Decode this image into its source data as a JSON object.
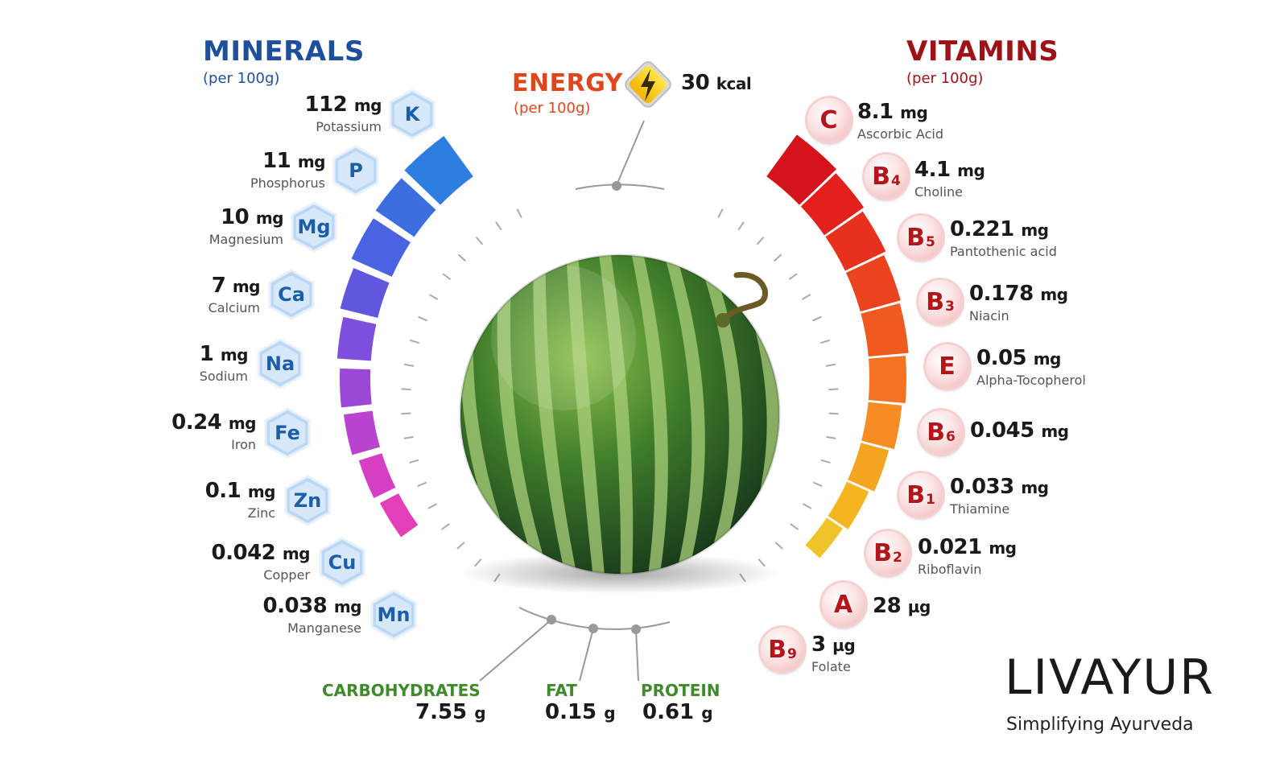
{
  "minerals": {
    "title": "MINERALS",
    "subtitle": "(per 100g)",
    "items": [
      {
        "value": "112",
        "unit": "mg",
        "name": "Potassium",
        "symbol": "K"
      },
      {
        "value": "11",
        "unit": "mg",
        "name": "Phosphorus",
        "symbol": "P"
      },
      {
        "value": "10",
        "unit": "mg",
        "name": "Magnesium",
        "symbol": "Mg"
      },
      {
        "value": "7",
        "unit": "mg",
        "name": "Calcium",
        "symbol": "Ca"
      },
      {
        "value": "1",
        "unit": "mg",
        "name": "Sodium",
        "symbol": "Na"
      },
      {
        "value": "0.24",
        "unit": "mg",
        "name": "Iron",
        "symbol": "Fe"
      },
      {
        "value": "0.1",
        "unit": "mg",
        "name": "Zinc",
        "symbol": "Zn"
      },
      {
        "value": "0.042",
        "unit": "mg",
        "name": "Copper",
        "symbol": "Cu"
      },
      {
        "value": "0.038",
        "unit": "mg",
        "name": "Manganese",
        "symbol": "Mn"
      }
    ]
  },
  "energy": {
    "title": "ENERGY",
    "subtitle": "(per 100g)",
    "value": "30",
    "unit": "kcal",
    "icon": "lightning-icon"
  },
  "vitamins": {
    "title": "VITAMINS",
    "subtitle": "(per 100g)",
    "items": [
      {
        "letter": "C",
        "sub": "",
        "value": "8.1",
        "unit": "mg",
        "name": "Ascorbic Acid"
      },
      {
        "letter": "B",
        "sub": "4",
        "value": "4.1",
        "unit": "mg",
        "name": "Choline"
      },
      {
        "letter": "B",
        "sub": "5",
        "value": "0.221",
        "unit": "mg",
        "name": "Pantothenic acid"
      },
      {
        "letter": "B",
        "sub": "3",
        "value": "0.178",
        "unit": "mg",
        "name": "Niacin"
      },
      {
        "letter": "E",
        "sub": "",
        "value": "0.05",
        "unit": "mg",
        "name": "Alpha-Tocopherol"
      },
      {
        "letter": "B",
        "sub": "6",
        "value": "0.045",
        "unit": "mg",
        "name": ""
      },
      {
        "letter": "B",
        "sub": "1",
        "value": "0.033",
        "unit": "mg",
        "name": "Thiamine"
      },
      {
        "letter": "B",
        "sub": "2",
        "value": "0.021",
        "unit": "mg",
        "name": "Riboflavin"
      },
      {
        "letter": "A",
        "sub": "",
        "value": "28",
        "unit": "µg",
        "name": ""
      },
      {
        "letter": "B",
        "sub": "9",
        "value": "3",
        "unit": "µg",
        "name": "Folate"
      }
    ]
  },
  "macros": [
    {
      "label": "CARBOHYDRATES",
      "value": "7.55",
      "unit": "g"
    },
    {
      "label": "FAT",
      "value": "0.15",
      "unit": "g"
    },
    {
      "label": "PROTEIN",
      "value": "0.61",
      "unit": "g"
    }
  ],
  "brand": {
    "name": "LIVAYUR",
    "tagline": "Simplifying Ayurveda"
  },
  "colors": {
    "minerals": "#1d4f9c",
    "vitamins": "#9e1116",
    "energy": "#e0461b",
    "macros": "#3f8a2a"
  }
}
